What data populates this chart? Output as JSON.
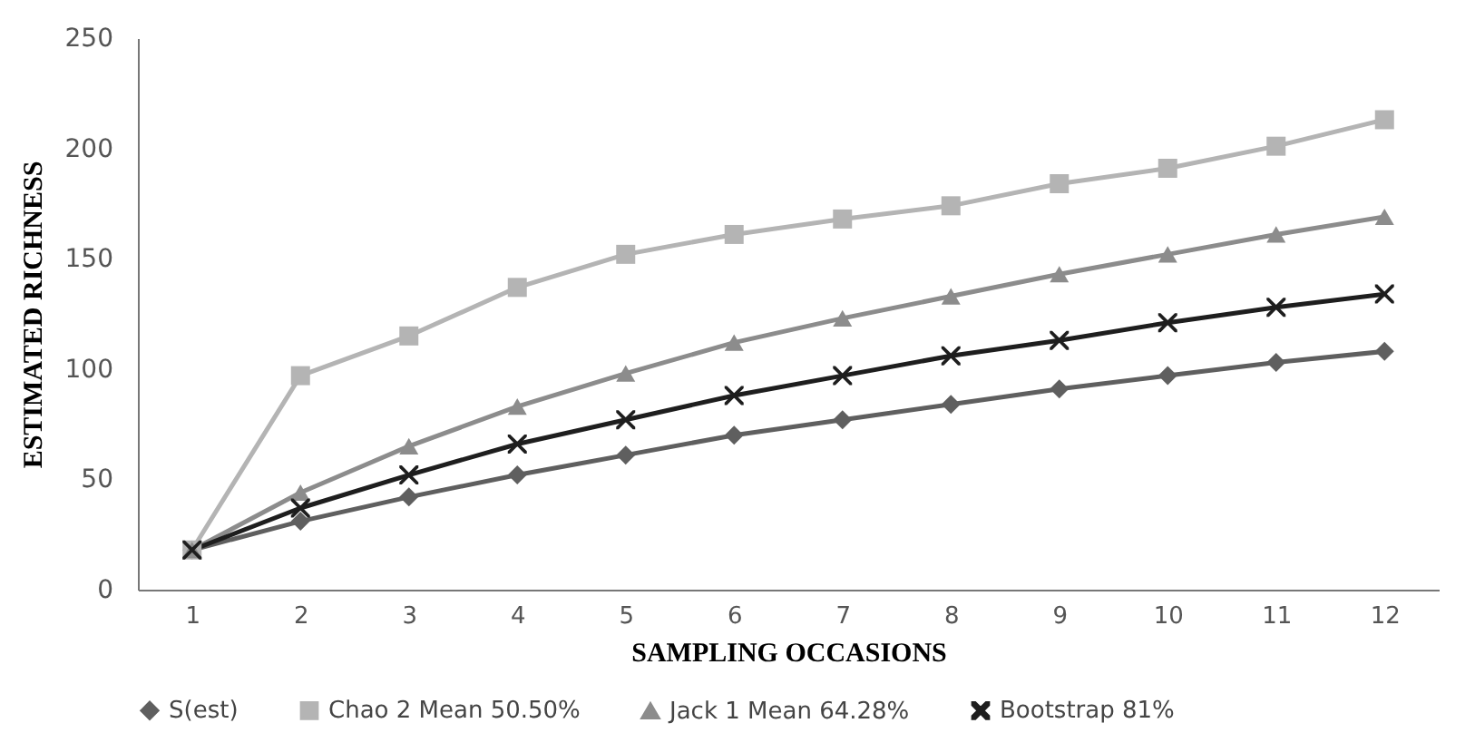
{
  "chart_data": {
    "type": "line",
    "xlabel": "SAMPLING OCCASIONS",
    "ylabel": "ESTIMATED RICHNESS",
    "x": [
      1,
      2,
      3,
      4,
      5,
      6,
      7,
      8,
      9,
      10,
      11,
      12
    ],
    "xlim": [
      0.5,
      12.5
    ],
    "xticks": [
      1,
      2,
      3,
      4,
      5,
      6,
      7,
      8,
      9,
      10,
      11,
      12
    ],
    "series": [
      {
        "name": "S(est)",
        "color": "#5f5f5f",
        "marker": "diamond",
        "values": [
          18,
          31,
          42,
          52,
          61,
          70,
          77,
          84,
          91,
          97,
          103,
          108
        ]
      },
      {
        "name": "Chao 2 Mean 50.50%",
        "color": "#b4b4b4",
        "marker": "square",
        "values": [
          18,
          97,
          115,
          137,
          152,
          161,
          168,
          174,
          184,
          191,
          201,
          213
        ]
      },
      {
        "name": "Jack 1 Mean 64.28%",
        "color": "#8c8c8c",
        "marker": "triangle",
        "values": [
          18,
          44,
          65,
          83,
          98,
          112,
          123,
          133,
          143,
          152,
          161,
          169
        ]
      },
      {
        "name": "Bootstrap 81%",
        "color": "#1e1e1e",
        "marker": "cross",
        "values": [
          18,
          37,
          52,
          66,
          77,
          88,
          97,
          106,
          113,
          121,
          128,
          134
        ]
      }
    ],
    "ylim": [
      0,
      250
    ],
    "yticks": [
      0,
      50,
      100,
      150,
      200,
      250
    ],
    "grid": false,
    "legend": "bottom",
    "line_style": "solid"
  }
}
